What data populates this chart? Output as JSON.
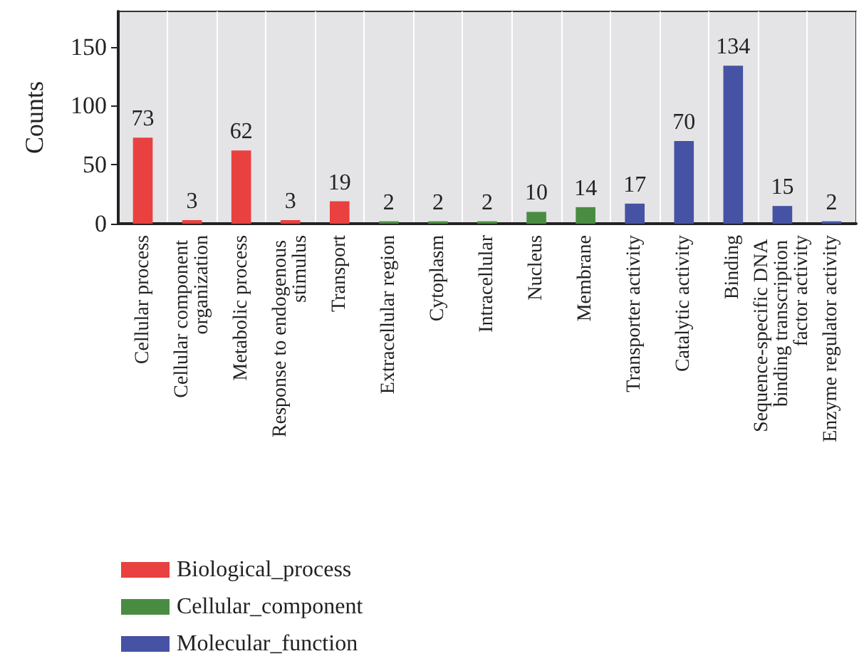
{
  "chart_data": {
    "type": "bar",
    "ylabel": "Counts",
    "categories": [
      "Cellular process",
      "Cellular component organization",
      "Metabolic process",
      "Response to endogenous stimulus",
      "Transport",
      "Extracellular region",
      "Cytoplasm",
      "Intracellular",
      "Nucleus",
      "Membrane",
      "Transporter activity",
      "Catalytic activity",
      "Binding",
      "Sequence-specific DNA binding transcription factor activity",
      "Enzyme regulator activity"
    ],
    "series": [
      {
        "name": "Biological_process",
        "color": "#e8413f",
        "values": [
          73,
          3,
          62,
          3,
          19,
          null,
          null,
          null,
          null,
          null,
          null,
          null,
          null,
          null,
          null
        ]
      },
      {
        "name": "Cellular_component",
        "color": "#4a8c42",
        "values": [
          null,
          null,
          null,
          null,
          null,
          2,
          2,
          2,
          10,
          14,
          null,
          null,
          null,
          null,
          null
        ]
      },
      {
        "name": "Molecular_function",
        "color": "#4652a3",
        "values": [
          null,
          null,
          null,
          null,
          null,
          null,
          null,
          null,
          null,
          null,
          17,
          70,
          134,
          15,
          2
        ]
      }
    ],
    "ylim": [
      0,
      180
    ],
    "yticks": [
      0,
      50,
      100,
      150
    ],
    "grid": "x",
    "data_labels": true,
    "legend": "bottom left"
  }
}
